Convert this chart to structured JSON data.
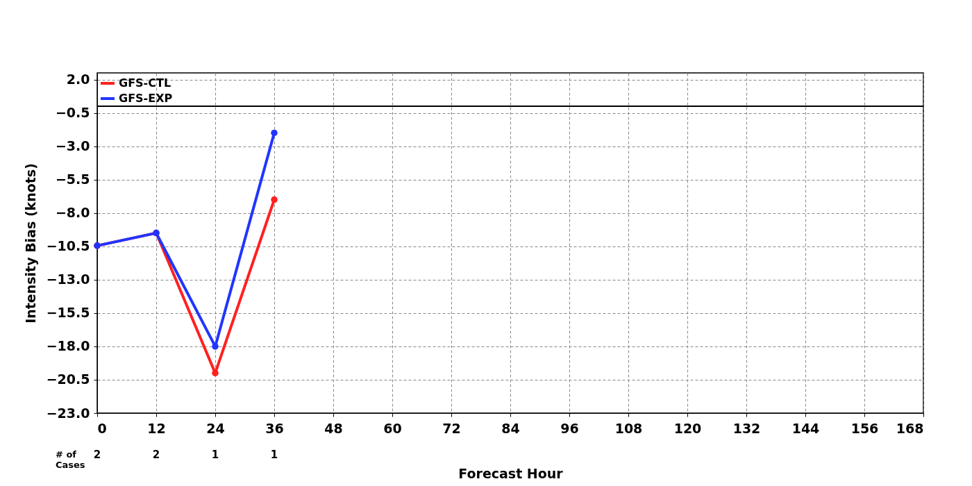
{
  "chart_data": {
    "type": "line",
    "xlabel": "Forecast Hour",
    "ylabel": "Intensity Bias (knots)",
    "x": [
      0,
      12,
      24,
      36
    ],
    "series": [
      {
        "name": "GFS-CTL",
        "color": "#ff2020",
        "values": [
          -10.45,
          -9.5,
          -20.0,
          -7.0
        ]
      },
      {
        "name": "GFS-EXP",
        "color": "#2035ff",
        "values": [
          -10.45,
          -9.5,
          -18.0,
          -2.0
        ]
      }
    ],
    "xlim": [
      0,
      168
    ],
    "xticks": [
      0,
      12,
      24,
      36,
      48,
      60,
      72,
      84,
      96,
      108,
      120,
      132,
      144,
      156,
      168
    ],
    "ylim": [
      -23,
      2.5
    ],
    "yticks": [
      {
        "value": 2,
        "label": "2.0"
      },
      {
        "value": -0.5,
        "label": "−0.5"
      },
      {
        "value": -3,
        "label": "−3.0"
      },
      {
        "value": -5.5,
        "label": "−5.5"
      },
      {
        "value": -8,
        "label": "−8.0"
      },
      {
        "value": -10.5,
        "label": "−10.5"
      },
      {
        "value": -13,
        "label": "−13.0"
      },
      {
        "value": -15.5,
        "label": "−15.5"
      },
      {
        "value": -18,
        "label": "−18.0"
      },
      {
        "value": -20.5,
        "label": "−20.5"
      },
      {
        "value": -23,
        "label": "−23.0"
      }
    ],
    "ref_lines": [
      {
        "axis": "y",
        "value": 0,
        "color": "#000000"
      }
    ],
    "annotations": [
      "# of\nCases",
      "2",
      "2",
      "1",
      "1"
    ],
    "grid": true,
    "legend": "top left",
    "marker": "circle",
    "line_style": "solid"
  }
}
